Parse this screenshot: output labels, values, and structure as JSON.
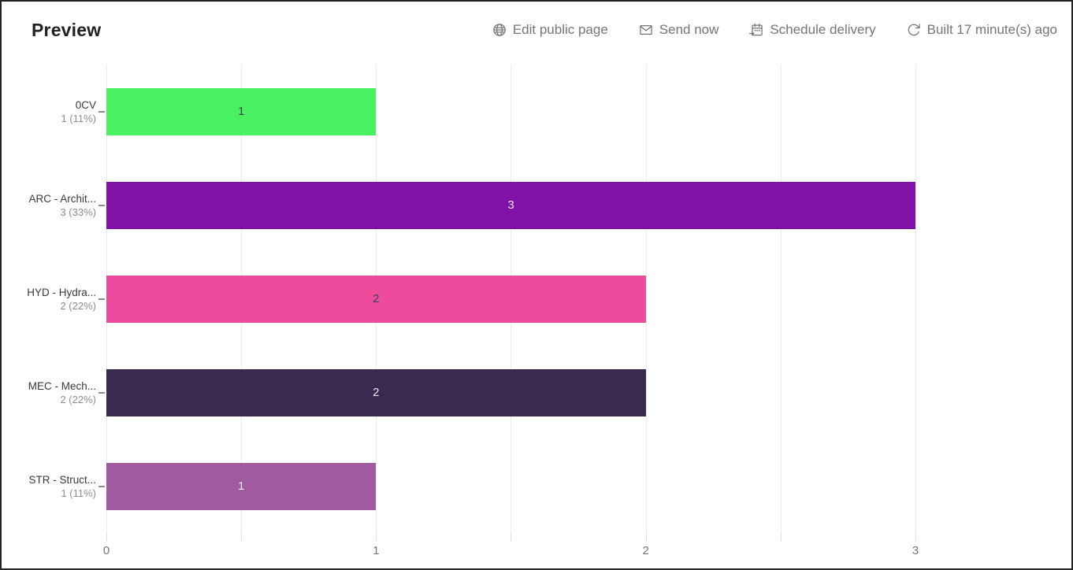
{
  "header": {
    "title": "Preview",
    "actions": [
      {
        "name": "edit-public-page",
        "icon": "globe-icon",
        "label": "Edit public page"
      },
      {
        "name": "send-now",
        "icon": "envelope-icon",
        "label": "Send now"
      },
      {
        "name": "schedule-delivery",
        "icon": "calendar-schedule-icon",
        "label": "Schedule delivery"
      },
      {
        "name": "rebuild",
        "icon": "refresh-icon",
        "label": "Built 17 minute(s) ago"
      }
    ]
  },
  "chart_data": {
    "type": "bar",
    "orientation": "horizontal",
    "title": "",
    "xlabel": "",
    "ylabel": "",
    "categories": [
      "0CV",
      "ARC - Archit...",
      "HYD - Hydra...",
      "MEC - Mech...",
      "STR - Struct..."
    ],
    "category_sublabels": [
      "1 (11%)",
      "3 (33%)",
      "2 (22%)",
      "2 (22%)",
      "1 (11%)"
    ],
    "values": [
      1,
      3,
      2,
      2,
      1
    ],
    "bar_labels": [
      "1",
      "3",
      "2",
      "2",
      "1"
    ],
    "bar_colors": [
      "#4AF163",
      "#8012A8",
      "#EE4B9D",
      "#3A2A50",
      "#A159A0"
    ],
    "bar_label_colors": [
      "#37474F",
      "#F2E7F5",
      "#37474F",
      "#ECE8F2",
      "#F5EEF5"
    ],
    "xlim": [
      0,
      3
    ],
    "x_major_ticks": [
      0,
      1,
      2,
      3
    ],
    "x_minor_step": 0.5,
    "grid": true,
    "legend": false
  },
  "colors": {
    "grid": "#e9ecf1",
    "axis_text": "#6e7480",
    "category_text": "#3a3a3a",
    "sublabel_text": "#8d8d8d",
    "header_action_text": "#757575",
    "title_text": "#212121"
  }
}
